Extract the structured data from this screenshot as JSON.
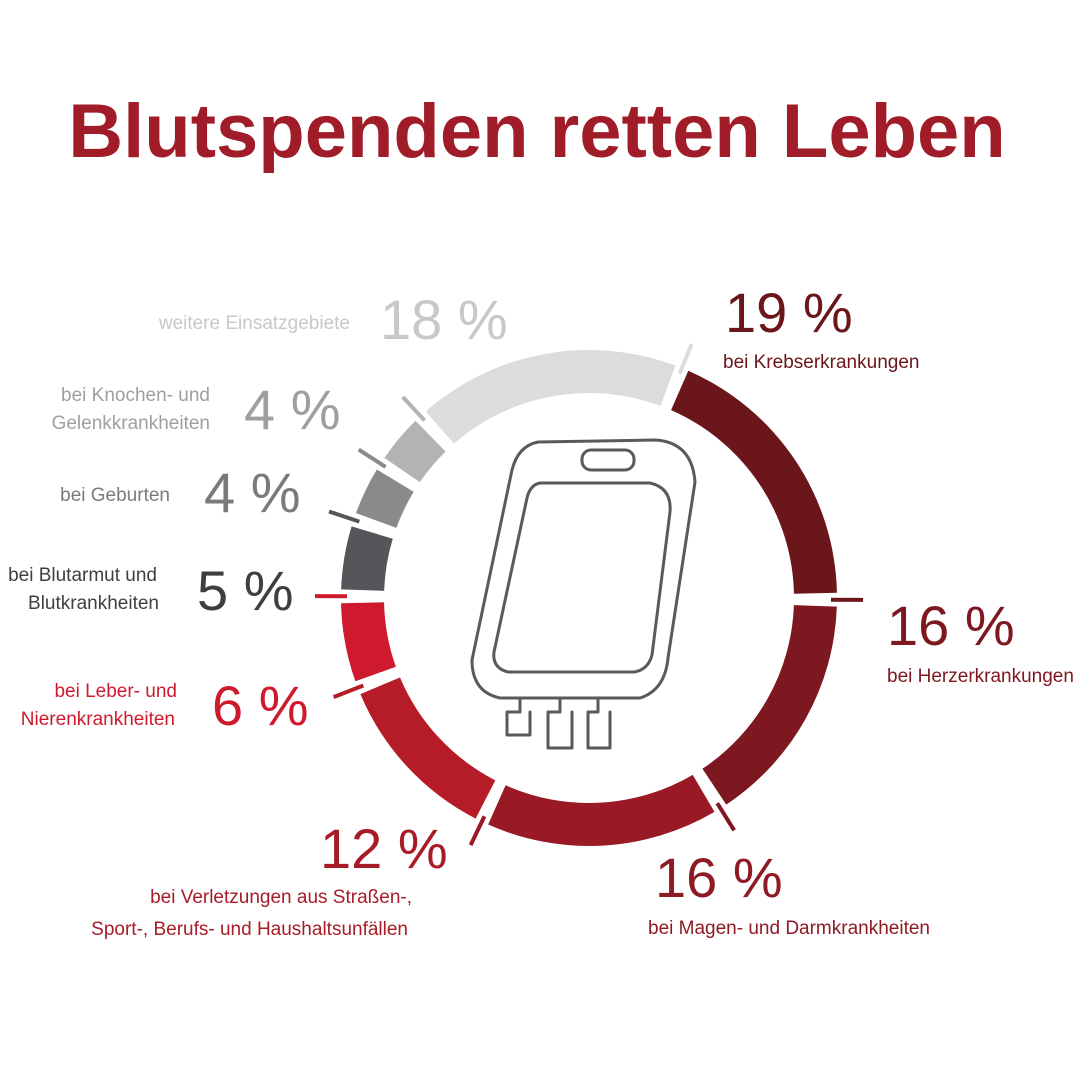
{
  "chart_data": {
    "type": "pie",
    "title": "Blutspenden retten Leben",
    "unit": "%",
    "colors": {
      "title": "#a01c28",
      "bag_outline": "#5a5a5a"
    },
    "slices": [
      {
        "value": 19,
        "value_label": "19 %",
        "label_lines": [
          "bei Krebserkrankungen"
        ],
        "color": "#6b161b",
        "text_color": "#6b161b"
      },
      {
        "value": 16,
        "value_label": "16 %",
        "label_lines": [
          "bei Herzerkrankungen"
        ],
        "color": "#7e1820",
        "text_color": "#7e1820"
      },
      {
        "value": 16,
        "value_label": "16 %",
        "label_lines": [
          "bei Magen- und Darmkrankheiten"
        ],
        "color": "#991a24",
        "text_color": "#8e1a23"
      },
      {
        "value": 12,
        "value_label": "12 %",
        "label_lines": [
          "bei Verletzungen aus Straßen-,",
          "Sport-, Berufs- und Haushaltsunfällen"
        ],
        "color": "#b51c28",
        "text_color": "#a81c27"
      },
      {
        "value": 6,
        "value_label": "6 %",
        "label_lines": [
          "bei Leber- und",
          "Nierenkrankheiten"
        ],
        "color": "#cf1a2d",
        "text_color": "#cf1a2d"
      },
      {
        "value": 5,
        "value_label": "5 %",
        "label_lines": [
          "bei Blutarmut und",
          "Blutkrankheiten"
        ],
        "color": "#55565a",
        "text_color": "#3f3f3f"
      },
      {
        "value": 4,
        "value_label": "4 %",
        "label_lines": [
          "bei Geburten"
        ],
        "color": "#8a8a8c",
        "text_color": "#7a7a7a"
      },
      {
        "value": 4,
        "value_label": "4 %",
        "label_lines": [
          "bei Knochen- und",
          "Gelenkkrankheiten"
        ],
        "color": "#b3b3b5",
        "text_color": "#9f9f9f"
      },
      {
        "value": 18,
        "value_label": "18 %",
        "label_lines": [
          "weitere Einsatzgebiete"
        ],
        "color": "#dcdcde",
        "text_color": "#c8c8c8"
      }
    ],
    "center_icon": "blood-bag-icon"
  }
}
